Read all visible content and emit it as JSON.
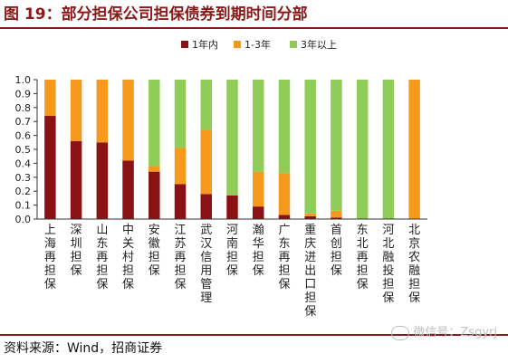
{
  "header": {
    "title": "图 19：部分担保公司担保债券到期时间分部"
  },
  "footer": {
    "source": "资料来源：Wind，招商证券",
    "watermark": "微信号：Zsgyrj"
  },
  "colors": {
    "brand": "#8b1a1a",
    "series_1": "#8b1214",
    "series_2": "#f59a1c",
    "series_3": "#8fcd58"
  },
  "chart_data": {
    "type": "bar",
    "stacked": true,
    "categories": [
      "上海再担保",
      "深圳担保",
      "山东再担保",
      "中关村担保",
      "安徽担保",
      "江苏再担保",
      "武汉信用管理",
      "河南担保",
      "瀚华担保",
      "广东再担保",
      "重庆进出口担保",
      "首创担保",
      "东北再担保",
      "河北融投担保",
      "北京农融担保"
    ],
    "series": [
      {
        "name": "1年内",
        "values": [
          0.74,
          0.56,
          0.55,
          0.42,
          0.34,
          0.25,
          0.18,
          0.17,
          0.09,
          0.03,
          0.02,
          0.01,
          0.0,
          0.0,
          0.0
        ]
      },
      {
        "name": "1-3年",
        "values": [
          0.26,
          0.44,
          0.45,
          0.58,
          0.04,
          0.26,
          0.46,
          0.0,
          0.25,
          0.3,
          0.02,
          0.05,
          0.0,
          0.0,
          1.0
        ]
      },
      {
        "name": "3年以上",
        "values": [
          0.0,
          0.0,
          0.0,
          0.0,
          0.62,
          0.49,
          0.36,
          0.83,
          0.66,
          0.67,
          0.96,
          0.94,
          1.0,
          1.0,
          0.0
        ]
      }
    ],
    "yticks": [
      "0.0",
      "0.1",
      "0.2",
      "0.3",
      "0.4",
      "0.5",
      "0.6",
      "0.7",
      "0.8",
      "0.9",
      "1.0"
    ],
    "ylim": [
      0,
      1.0
    ],
    "legend_position": "top-center",
    "grid": false
  }
}
